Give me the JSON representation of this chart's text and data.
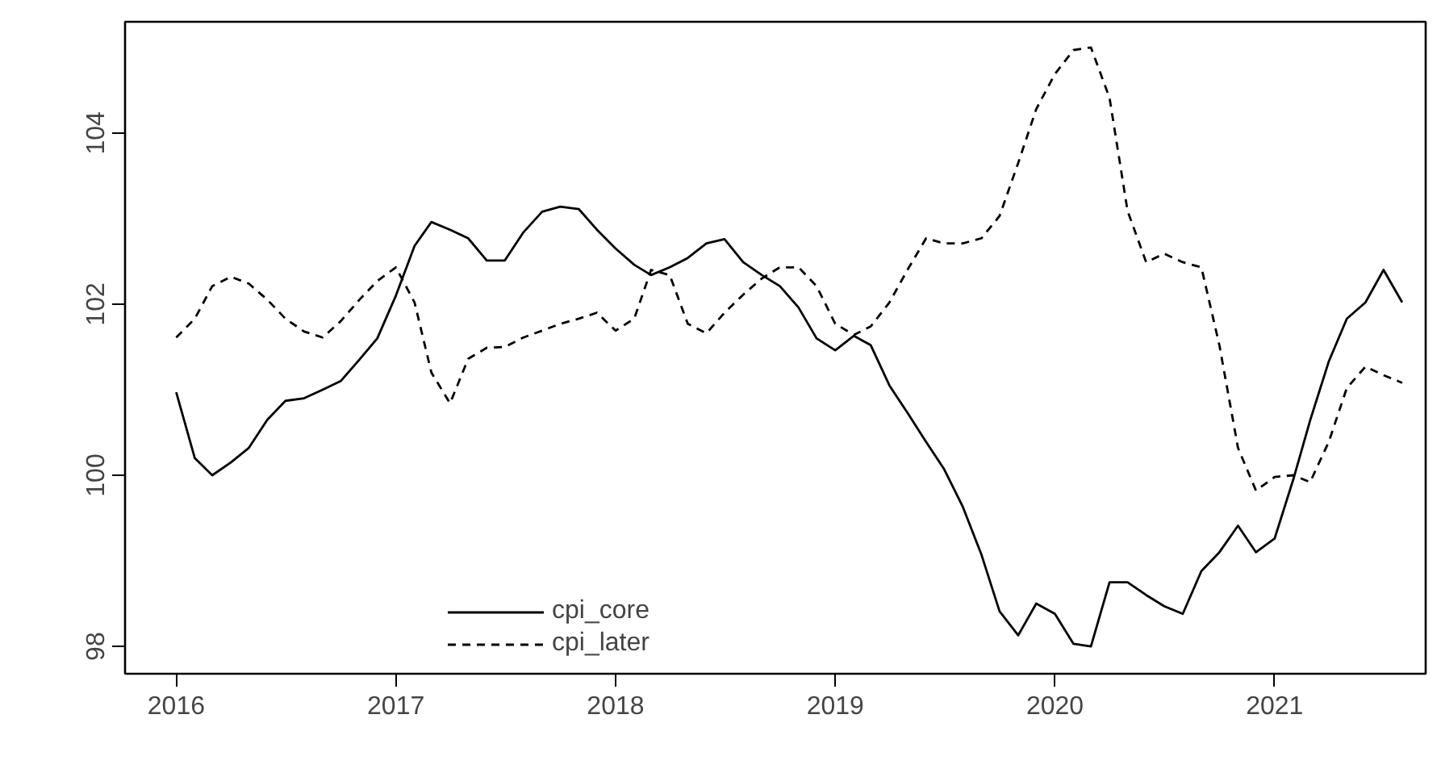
{
  "chart_data": {
    "type": "line",
    "x": [
      "2016-01",
      "2016-02",
      "2016-03",
      "2016-04",
      "2016-05",
      "2016-06",
      "2016-07",
      "2016-08",
      "2016-09",
      "2016-10",
      "2016-11",
      "2016-12",
      "2017-01",
      "2017-02",
      "2017-03",
      "2017-04",
      "2017-05",
      "2017-06",
      "2017-07",
      "2017-08",
      "2017-09",
      "2017-10",
      "2017-11",
      "2017-12",
      "2018-01",
      "2018-02",
      "2018-03",
      "2018-04",
      "2018-05",
      "2018-06",
      "2018-07",
      "2018-08",
      "2018-09",
      "2018-10",
      "2018-11",
      "2018-12",
      "2019-01",
      "2019-02",
      "2019-03",
      "2019-04",
      "2019-05",
      "2019-06",
      "2019-07",
      "2019-08",
      "2019-09",
      "2019-10",
      "2019-11",
      "2019-12",
      "2020-01",
      "2020-02",
      "2020-03",
      "2020-04",
      "2020-05",
      "2020-06",
      "2020-07",
      "2020-08",
      "2020-09",
      "2020-10",
      "2020-11",
      "2020-12",
      "2021-01",
      "2021-02",
      "2021-03",
      "2021-04",
      "2021-05",
      "2021-06",
      "2021-07",
      "2021-08"
    ],
    "series": [
      {
        "name": "cpi_core",
        "color": "#000000",
        "line_style": "solid",
        "values": [
          100.97,
          100.2,
          100.0,
          100.15,
          100.32,
          100.65,
          100.87,
          100.9,
          101.0,
          101.1,
          101.35,
          101.6,
          102.1,
          102.68,
          102.96,
          102.87,
          102.77,
          102.51,
          102.51,
          102.84,
          103.08,
          103.14,
          103.11,
          102.87,
          102.65,
          102.46,
          102.34,
          102.43,
          102.54,
          102.71,
          102.76,
          102.49,
          102.34,
          102.21,
          101.96,
          101.6,
          101.46,
          101.63,
          101.52,
          101.05,
          100.73,
          100.39,
          100.07,
          99.63,
          99.07,
          98.41,
          98.13,
          98.5,
          98.38,
          98.03,
          98.0,
          98.75,
          98.75,
          98.6,
          98.47,
          98.38,
          98.88,
          99.1,
          99.41,
          99.1,
          99.26,
          99.95,
          100.64,
          101.33,
          101.83,
          102.02,
          102.4,
          102.02
        ]
      },
      {
        "name": "cpi_later",
        "color": "#000000",
        "line_style": "dashed",
        "values": [
          101.61,
          101.83,
          102.21,
          102.32,
          102.24,
          102.05,
          101.83,
          101.68,
          101.61,
          101.8,
          102.05,
          102.27,
          102.43,
          102.02,
          101.2,
          100.84,
          101.36,
          101.49,
          101.5,
          101.61,
          101.69,
          101.77,
          101.83,
          101.9,
          101.69,
          101.83,
          102.4,
          102.34,
          101.77,
          101.66,
          101.9,
          102.11,
          102.3,
          102.43,
          102.43,
          102.21,
          101.77,
          101.64,
          101.74,
          102.02,
          102.4,
          102.77,
          102.71,
          102.71,
          102.77,
          103.03,
          103.65,
          104.28,
          104.69,
          104.97,
          105.0,
          104.41,
          103.09,
          102.49,
          102.59,
          102.49,
          102.43,
          101.52,
          100.32,
          99.82,
          99.98,
          100.0,
          99.92,
          100.39,
          101.02,
          101.27,
          101.17,
          101.08
        ]
      }
    ],
    "xlim": [
      "2015-10-08",
      "2021-09-09"
    ],
    "xticks": [
      "2016",
      "2017",
      "2018",
      "2019",
      "2020",
      "2021"
    ],
    "ylim": [
      97.68,
      105.3
    ],
    "yticks": [
      98,
      100,
      102,
      104
    ],
    "grid": false,
    "legend": "bottom left"
  }
}
